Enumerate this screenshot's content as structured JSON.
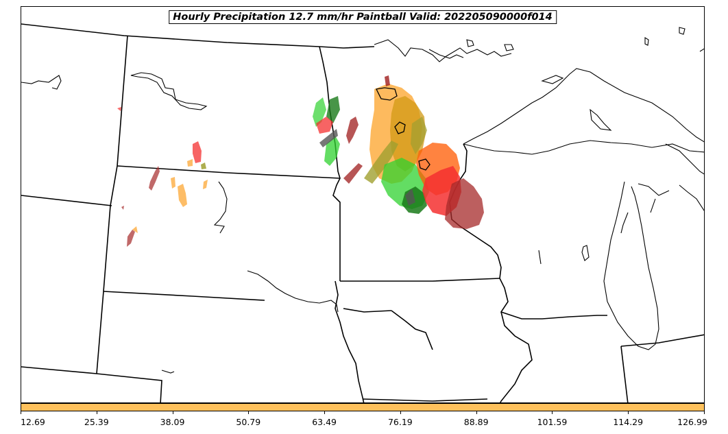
{
  "title": "Hourly Precipitation 12.7 mm/hr Paintball Valid: 202205090000f014",
  "colorbar": {
    "color": "#fec15c",
    "ticks": [
      "12.69",
      "25.39",
      "38.09",
      "50.79",
      "63.49",
      "76.19",
      "88.89",
      "101.59",
      "114.29",
      "126.99"
    ]
  },
  "colors": {
    "member_orange": "#fdb24c",
    "member_red": "#f43030",
    "member_dark_red": "#a52a2a",
    "member_green": "#2fd12f",
    "member_dark_green": "#1a7a1a",
    "member_olive": "#a0a030",
    "member_gray": "#555555",
    "member_goldenrod": "#d29a16",
    "member_orange_red": "#ff5a00"
  }
}
